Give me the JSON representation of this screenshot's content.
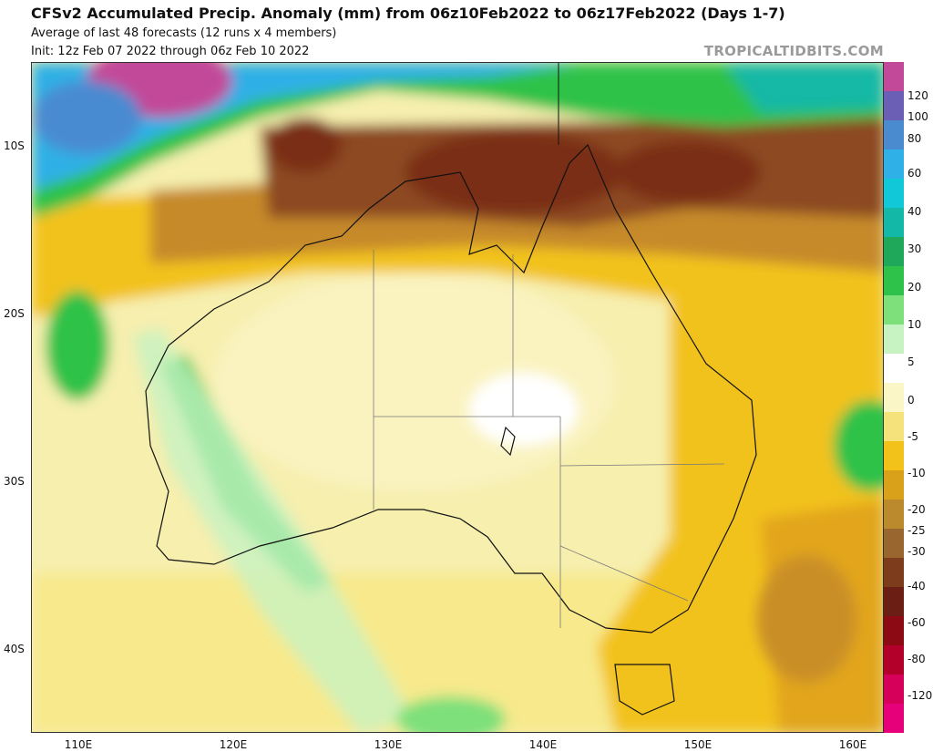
{
  "header": {
    "title": "CFSv2 Accumulated Precip. Anomaly (mm) from 06z10Feb2022 to 06z17Feb2022 (Days 1-7)",
    "subtitle": "Average of last 48 forecasts (12 runs x 4 members)",
    "init": "Init: 12z Feb 07 2022 through 06z Feb 10 2022",
    "brand": "TROPICALTIDBITS.COM"
  },
  "axes": {
    "lat_labels": [
      "10S",
      "20S",
      "30S",
      "40S"
    ],
    "lon_labels": [
      "110E",
      "120E",
      "130E",
      "140E",
      "150E",
      "160E"
    ]
  },
  "colorbar": {
    "labels": [
      "120",
      "100",
      "80",
      "60",
      "40",
      "30",
      "20",
      "10",
      "5",
      "0",
      "-5",
      "-10",
      "-20",
      "-25",
      "-30",
      "-40",
      "-60",
      "-80",
      "-120"
    ],
    "colors": [
      "#c2499a",
      "#6b5fb5",
      "#4a8bd0",
      "#2fb0e6",
      "#11c8d8",
      "#14b8a6",
      "#1fa85a",
      "#2fc24a",
      "#7ee07a",
      "#c7f2c2",
      "#ffffff",
      "#fbf6c6",
      "#f6e27a",
      "#f2c21a",
      "#d9a11a",
      "#bb8a2c",
      "#9a6630",
      "#7d3c1c",
      "#6b1e14",
      "#8c0a14",
      "#b2002a",
      "#d6005a",
      "#e6007a"
    ]
  }
}
